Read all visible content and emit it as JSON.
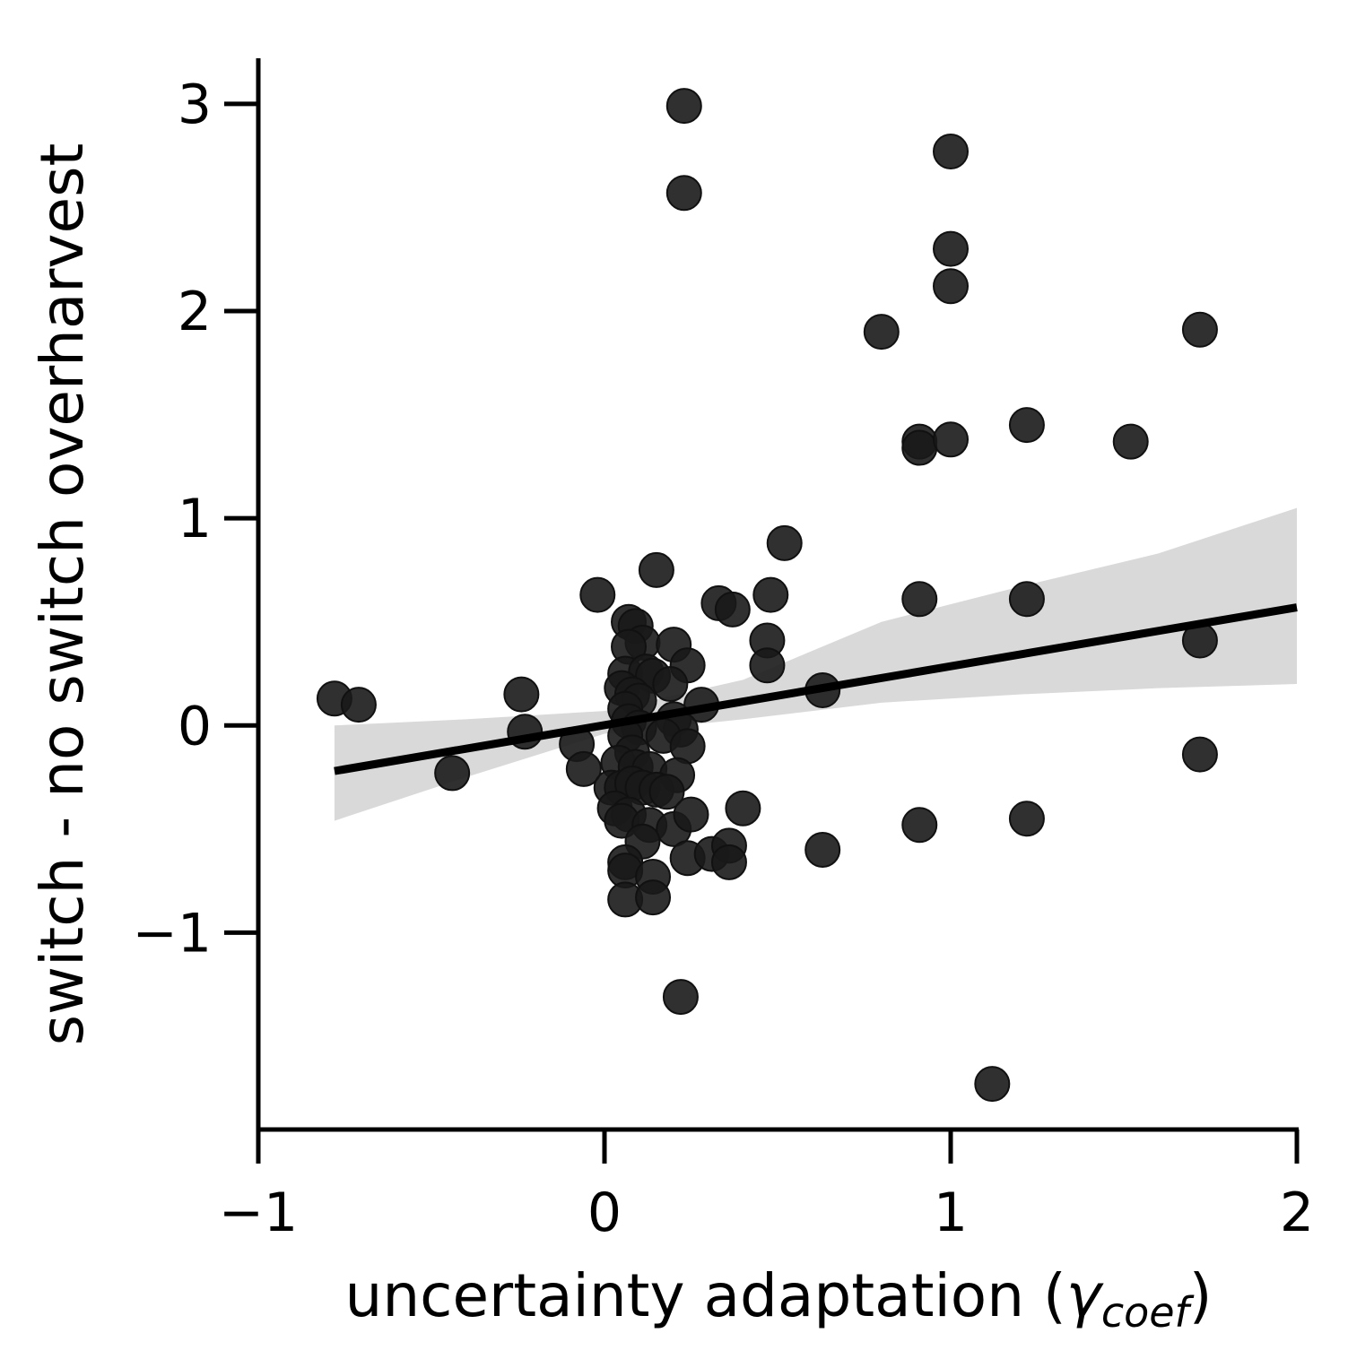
{
  "chart_data": {
    "type": "scatter",
    "xlabel": {
      "prefix": "uncertainty adaptation (",
      "symbol": "γ",
      "subscript": "coef",
      "suffix": ")"
    },
    "ylabel": "switch - no switch overharvest",
    "xlim": [
      -1,
      2
    ],
    "ylim": [
      -1.95,
      3.22
    ],
    "xticks": [
      -1,
      0,
      1,
      2
    ],
    "xtick_labels": [
      "−1",
      "0",
      "1",
      "2"
    ],
    "yticks": [
      -1,
      0,
      1,
      2,
      3
    ],
    "ytick_labels": [
      "−1",
      "0",
      "1",
      "2",
      "3"
    ],
    "grid": false,
    "colors": {
      "points": "#1a1a1a",
      "line": "#000000",
      "band": "#d9d9d9"
    },
    "regression": {
      "x": [
        -0.78,
        2.0
      ],
      "y": [
        -0.22,
        0.57
      ],
      "ci_upper": [
        [
          -0.78,
          0.0
        ],
        [
          -0.4,
          0.03
        ],
        [
          0.0,
          0.07
        ],
        [
          0.4,
          0.22
        ],
        [
          0.8,
          0.5
        ],
        [
          1.2,
          0.67
        ],
        [
          1.6,
          0.83
        ],
        [
          2.0,
          1.05
        ]
      ],
      "ci_lower": [
        [
          -0.78,
          -0.46
        ],
        [
          -0.4,
          -0.25
        ],
        [
          0.0,
          -0.04
        ],
        [
          0.4,
          0.03
        ],
        [
          0.8,
          0.11
        ],
        [
          1.2,
          0.15
        ],
        [
          1.6,
          0.18
        ],
        [
          2.0,
          0.2
        ]
      ]
    },
    "points": [
      [
        0.23,
        2.99
      ],
      [
        0.23,
        2.57
      ],
      [
        1.0,
        2.77
      ],
      [
        1.0,
        2.3
      ],
      [
        1.0,
        2.12
      ],
      [
        0.8,
        1.9
      ],
      [
        1.72,
        1.91
      ],
      [
        0.91,
        1.37
      ],
      [
        0.91,
        1.34
      ],
      [
        1.0,
        1.38
      ],
      [
        1.22,
        1.45
      ],
      [
        1.52,
        1.37
      ],
      [
        0.52,
        0.88
      ],
      [
        0.15,
        0.75
      ],
      [
        -0.02,
        0.63
      ],
      [
        0.33,
        0.59
      ],
      [
        0.37,
        0.56
      ],
      [
        0.48,
        0.63
      ],
      [
        0.91,
        0.61
      ],
      [
        1.22,
        0.61
      ],
      [
        0.47,
        0.41
      ],
      [
        0.47,
        0.29
      ],
      [
        1.72,
        0.41
      ],
      [
        0.63,
        0.17
      ],
      [
        0.28,
        0.1
      ],
      [
        -0.78,
        0.13
      ],
      [
        -0.71,
        0.1
      ],
      [
        -0.24,
        0.15
      ],
      [
        -0.23,
        -0.03
      ],
      [
        -0.44,
        -0.23
      ],
      [
        -0.08,
        -0.09
      ],
      [
        -0.06,
        -0.21
      ],
      [
        0.07,
        0.5
      ],
      [
        0.09,
        0.48
      ],
      [
        0.11,
        0.4
      ],
      [
        0.07,
        0.38
      ],
      [
        0.2,
        0.39
      ],
      [
        0.24,
        0.29
      ],
      [
        0.06,
        0.25
      ],
      [
        0.12,
        0.26
      ],
      [
        0.14,
        0.24
      ],
      [
        0.19,
        0.2
      ],
      [
        0.05,
        0.18
      ],
      [
        0.08,
        0.15
      ],
      [
        0.1,
        0.12
      ],
      [
        0.06,
        0.08
      ],
      [
        0.07,
        0.02
      ],
      [
        0.1,
        -0.01
      ],
      [
        0.2,
        0.03
      ],
      [
        0.22,
        -0.02
      ],
      [
        0.17,
        -0.05
      ],
      [
        0.24,
        -0.1
      ],
      [
        0.06,
        -0.05
      ],
      [
        0.08,
        -0.13
      ],
      [
        0.04,
        -0.18
      ],
      [
        0.09,
        -0.2
      ],
      [
        0.13,
        -0.21
      ],
      [
        0.21,
        -0.24
      ],
      [
        0.02,
        -0.3
      ],
      [
        0.05,
        -0.3
      ],
      [
        0.08,
        -0.28
      ],
      [
        0.11,
        -0.3
      ],
      [
        0.15,
        -0.31
      ],
      [
        0.18,
        -0.32
      ],
      [
        0.03,
        -0.4
      ],
      [
        0.07,
        -0.43
      ],
      [
        0.05,
        -0.46
      ],
      [
        0.13,
        -0.48
      ],
      [
        0.2,
        -0.5
      ],
      [
        0.25,
        -0.43
      ],
      [
        0.11,
        -0.56
      ],
      [
        0.24,
        -0.64
      ],
      [
        0.31,
        -0.62
      ],
      [
        0.36,
        -0.58
      ],
      [
        0.36,
        -0.66
      ],
      [
        0.06,
        -0.66
      ],
      [
        0.06,
        -0.7
      ],
      [
        0.14,
        -0.73
      ],
      [
        0.06,
        -0.84
      ],
      [
        0.14,
        -0.83
      ],
      [
        0.4,
        -0.4
      ],
      [
        0.63,
        -0.6
      ],
      [
        0.91,
        -0.48
      ],
      [
        1.22,
        -0.45
      ],
      [
        1.72,
        -0.14
      ],
      [
        0.22,
        -1.31
      ],
      [
        1.12,
        -1.73
      ]
    ]
  }
}
